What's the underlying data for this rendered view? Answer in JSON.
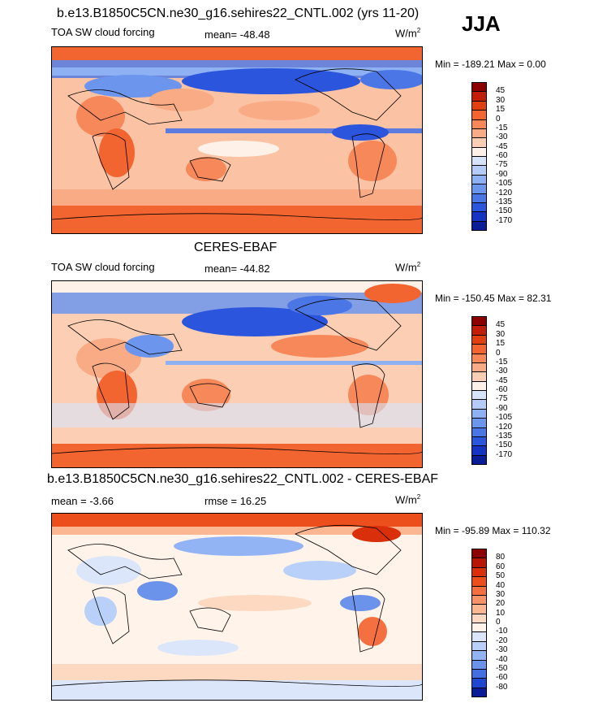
{
  "season": "JJA",
  "panels": [
    {
      "title": "b.e13.B1850C5CN.ne30_g16.sehires22_CNTL.002 (yrs 11-20)",
      "left_label": "TOA SW cloud forcing",
      "mid_label": "mean= -48.48",
      "units": "W/m",
      "units_exp": "2",
      "minmax": "Min = -189.21 Max =   0.00",
      "colorbar": {
        "levels": [
          "45",
          "30",
          "15",
          "0",
          "-15",
          "-30",
          "-45",
          "-60",
          "-75",
          "-90",
          "-105",
          "-120",
          "-135",
          "-150",
          "-170"
        ],
        "colors": [
          "#8b0000",
          "#c01f06",
          "#e0400f",
          "#f26530",
          "#f6885a",
          "#f9ab85",
          "#fccfb4",
          "#fdf1e8",
          "#d6e4fb",
          "#b3ccf8",
          "#8eb1f3",
          "#6c95ed",
          "#4a76e6",
          "#2a55dc",
          "#1534c4",
          "#0a1c96"
        ]
      }
    },
    {
      "title": "CERES-EBAF",
      "left_label": "TOA SW cloud forcing",
      "mid_label": "mean= -44.82",
      "units": "W/m",
      "units_exp": "2",
      "minmax": "Min = -150.45 Max =  82.31",
      "colorbar": {
        "levels": [
          "45",
          "30",
          "15",
          "0",
          "-15",
          "-30",
          "-45",
          "-60",
          "-75",
          "-90",
          "-105",
          "-120",
          "-135",
          "-150",
          "-170"
        ],
        "colors": [
          "#8b0000",
          "#c01f06",
          "#e0400f",
          "#f26530",
          "#f6885a",
          "#f9ab85",
          "#fccfb4",
          "#fdf1e8",
          "#d6e4fb",
          "#b3ccf8",
          "#8eb1f3",
          "#6c95ed",
          "#4a76e6",
          "#2a55dc",
          "#1534c4",
          "#0a1c96"
        ]
      }
    },
    {
      "title": "b.e13.B1850C5CN.ne30_g16.sehires22_CNTL.002 - CERES-EBAF",
      "left_label": "mean =  -3.66",
      "mid_label": "rmse =  16.25",
      "units": "W/m",
      "units_exp": "2",
      "minmax": "Min = -95.89 Max = 110.32",
      "colorbar": {
        "levels": [
          "80",
          "60",
          "50",
          "40",
          "30",
          "20",
          "10",
          "0",
          "-10",
          "-20",
          "-30",
          "-40",
          "-50",
          "-60",
          "-80"
        ],
        "colors": [
          "#8b0000",
          "#b81505",
          "#d9300b",
          "#ec4f1c",
          "#f47041",
          "#f89369",
          "#fbb792",
          "#fdd9c1",
          "#fff3ea",
          "#dbe6fb",
          "#b9d0f9",
          "#93b4f4",
          "#6c93ec",
          "#446fe2",
          "#1f47d2",
          "#0a1c96"
        ]
      }
    }
  ]
}
